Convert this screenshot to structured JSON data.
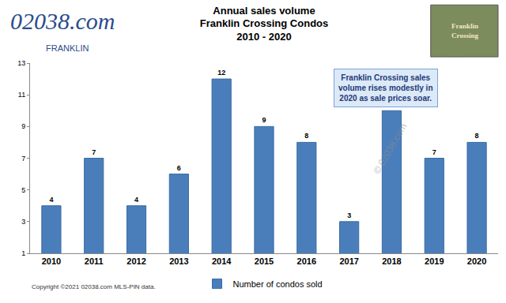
{
  "chart_data": {
    "type": "bar",
    "title": "Annual sales volume\nFranklin Crossing Condos",
    "subtitle": "2010 - 2020",
    "categories": [
      "2010",
      "2011",
      "2012",
      "2013",
      "2014",
      "2015",
      "2016",
      "2017",
      "2018",
      "2019",
      "2020"
    ],
    "series": [
      {
        "name": "Number of condos sold",
        "color": "#4a7ebb",
        "values": [
          4,
          7,
          4,
          6,
          12,
          9,
          8,
          3,
          10,
          7,
          8
        ]
      }
    ],
    "ylim": [
      1,
      13
    ],
    "yticks": [
      1,
      3,
      5,
      7,
      9,
      11,
      13
    ],
    "grid": false,
    "data_labels": true,
    "legend": "bottom",
    "annotations": [
      "Franklin Crossing sales\nvolume rises modestly in\n2020 as sale prices soar.",
      "© 02038.com",
      "Copyright ©2021 02038.com MLS-PIN data.",
      "02038.com",
      "FRANKLIN",
      "Franklin\nCrossing"
    ]
  }
}
